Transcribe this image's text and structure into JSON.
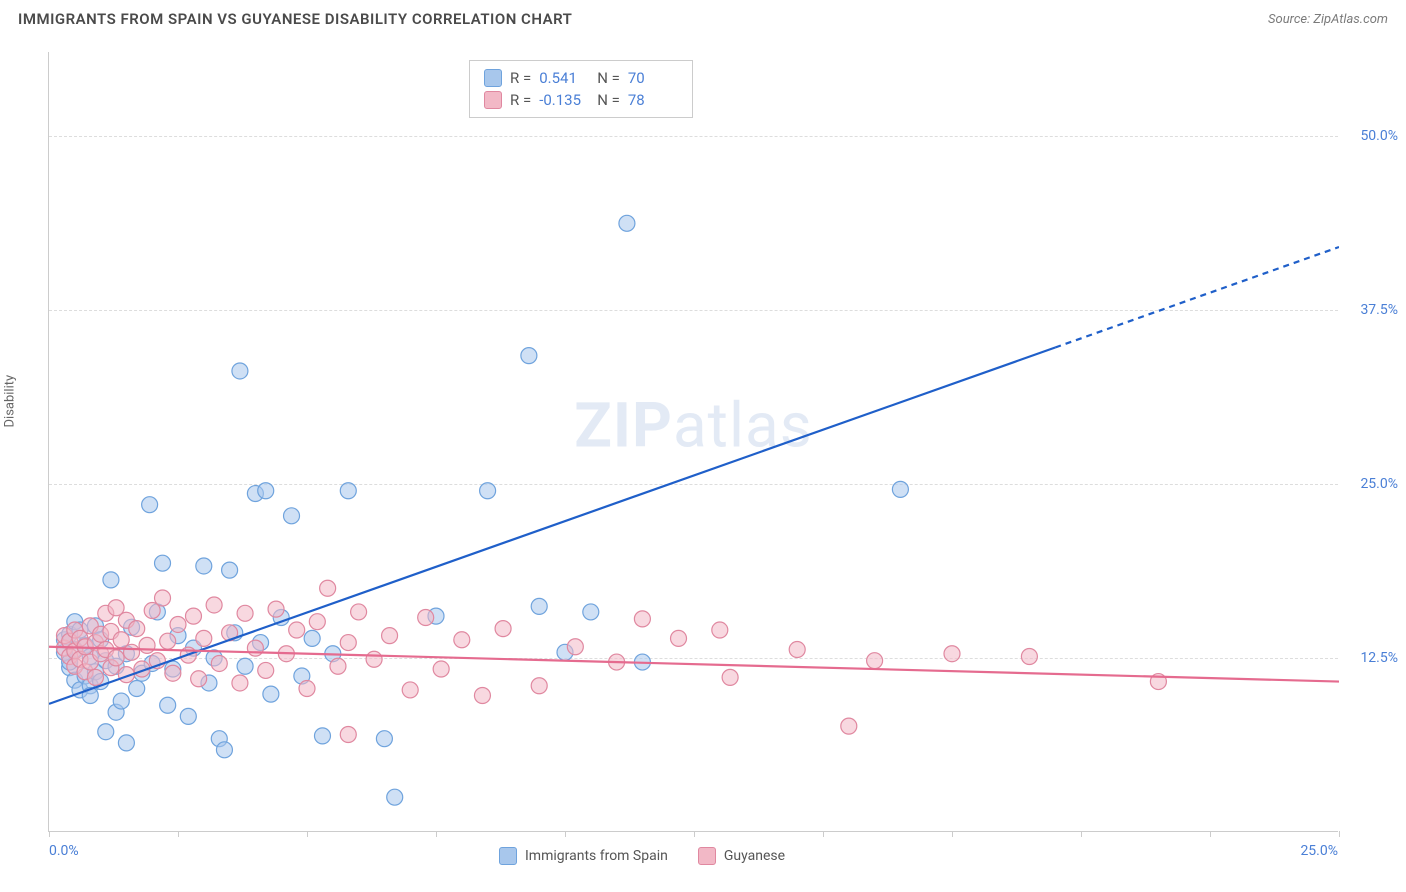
{
  "title": "IMMIGRANTS FROM SPAIN VS GUYANESE DISABILITY CORRELATION CHART",
  "source": "Source: ZipAtlas.com",
  "watermark_bold": "ZIP",
  "watermark_light": "atlas",
  "chart": {
    "type": "scatter",
    "xlim": [
      0,
      25
    ],
    "ylim": [
      0,
      56
    ],
    "x_tick_labels": {
      "first": "0.0%",
      "last": "25.0%"
    },
    "x_tick_positions": [
      0,
      2.5,
      5,
      7.5,
      10,
      12.5,
      15,
      17.5,
      20,
      22.5,
      25
    ],
    "y_gridlines": [
      12.5,
      25,
      37.5,
      50
    ],
    "y_tick_labels": [
      "12.5%",
      "25.0%",
      "37.5%",
      "50.0%"
    ],
    "y_axis_label": "Disability",
    "background_color": "#ffffff",
    "grid_color": "#dddddd",
    "axis_color": "#cccccc",
    "series": [
      {
        "name": "Immigrants from Spain",
        "color_fill": "#a8c7ec",
        "color_stroke": "#6fa3dd",
        "marker_radius": 8,
        "fill_opacity": 0.55,
        "R": "0.541",
        "N": "70",
        "trendline": {
          "color": "#1f5fc9",
          "width": 2.2,
          "solid_end_x": 19.5,
          "points": [
            [
              0,
              9.2
            ],
            [
              25,
              42
            ]
          ]
        },
        "points": [
          [
            0.3,
            13.8
          ],
          [
            0.3,
            12.9
          ],
          [
            0.4,
            11.8
          ],
          [
            0.4,
            14.2
          ],
          [
            0.4,
            12.2
          ],
          [
            0.5,
            13.1
          ],
          [
            0.5,
            10.9
          ],
          [
            0.5,
            15.1
          ],
          [
            0.6,
            10.2
          ],
          [
            0.6,
            14.5
          ],
          [
            0.7,
            13.4
          ],
          [
            0.7,
            11.2
          ],
          [
            0.8,
            12.6
          ],
          [
            0.8,
            10.5
          ],
          [
            0.8,
            9.8
          ],
          [
            0.9,
            14.8
          ],
          [
            0.9,
            11.5
          ],
          [
            1.0,
            13.8
          ],
          [
            1.0,
            10.8
          ],
          [
            1.1,
            7.2
          ],
          [
            1.1,
            12.3
          ],
          [
            1.2,
            18.1
          ],
          [
            1.3,
            8.6
          ],
          [
            1.3,
            11.9
          ],
          [
            1.4,
            9.4
          ],
          [
            1.5,
            6.4
          ],
          [
            1.5,
            12.8
          ],
          [
            1.6,
            14.7
          ],
          [
            1.7,
            10.3
          ],
          [
            1.8,
            11.4
          ],
          [
            1.95,
            23.5
          ],
          [
            2.0,
            12.1
          ],
          [
            2.1,
            15.8
          ],
          [
            2.2,
            19.3
          ],
          [
            2.3,
            9.1
          ],
          [
            2.4,
            11.7
          ],
          [
            2.5,
            14.1
          ],
          [
            2.7,
            8.3
          ],
          [
            2.8,
            13.2
          ],
          [
            3.0,
            19.1
          ],
          [
            3.1,
            10.7
          ],
          [
            3.2,
            12.5
          ],
          [
            3.3,
            6.7
          ],
          [
            3.4,
            5.9
          ],
          [
            3.5,
            18.8
          ],
          [
            3.6,
            14.3
          ],
          [
            3.7,
            33.1
          ],
          [
            3.8,
            11.9
          ],
          [
            4.0,
            24.3
          ],
          [
            4.1,
            13.6
          ],
          [
            4.2,
            24.5
          ],
          [
            4.3,
            9.9
          ],
          [
            4.5,
            15.4
          ],
          [
            4.7,
            22.7
          ],
          [
            4.9,
            11.2
          ],
          [
            5.1,
            13.9
          ],
          [
            5.3,
            6.9
          ],
          [
            5.5,
            12.8
          ],
          [
            5.8,
            24.5
          ],
          [
            6.5,
            6.7
          ],
          [
            6.7,
            2.5
          ],
          [
            7.5,
            15.5
          ],
          [
            8.5,
            24.5
          ],
          [
            9.3,
            34.2
          ],
          [
            9.5,
            16.2
          ],
          [
            10.0,
            12.9
          ],
          [
            10.5,
            15.8
          ],
          [
            11.2,
            43.7
          ],
          [
            11.5,
            12.2
          ],
          [
            16.5,
            24.6
          ]
        ]
      },
      {
        "name": "Guyanese",
        "color_fill": "#f2b8c6",
        "color_stroke": "#e088a0",
        "marker_radius": 8,
        "fill_opacity": 0.55,
        "R": "-0.135",
        "N": "78",
        "trendline": {
          "color": "#e56b8f",
          "width": 2.2,
          "points": [
            [
              0,
              13.3
            ],
            [
              25,
              10.8
            ]
          ]
        },
        "points": [
          [
            0.3,
            13.2
          ],
          [
            0.3,
            14.1
          ],
          [
            0.4,
            12.6
          ],
          [
            0.4,
            13.7
          ],
          [
            0.5,
            11.9
          ],
          [
            0.5,
            13.0
          ],
          [
            0.5,
            14.5
          ],
          [
            0.6,
            12.4
          ],
          [
            0.6,
            13.9
          ],
          [
            0.7,
            11.5
          ],
          [
            0.7,
            13.3
          ],
          [
            0.8,
            14.8
          ],
          [
            0.8,
            12.2
          ],
          [
            0.9,
            13.6
          ],
          [
            0.9,
            11.1
          ],
          [
            1.0,
            14.2
          ],
          [
            1.0,
            12.8
          ],
          [
            1.1,
            15.7
          ],
          [
            1.1,
            13.1
          ],
          [
            1.2,
            11.8
          ],
          [
            1.2,
            14.4
          ],
          [
            1.3,
            12.5
          ],
          [
            1.3,
            16.1
          ],
          [
            1.4,
            13.8
          ],
          [
            1.5,
            11.3
          ],
          [
            1.5,
            15.2
          ],
          [
            1.6,
            12.9
          ],
          [
            1.7,
            14.6
          ],
          [
            1.8,
            11.7
          ],
          [
            1.9,
            13.4
          ],
          [
            2.0,
            15.9
          ],
          [
            2.1,
            12.3
          ],
          [
            2.2,
            16.8
          ],
          [
            2.3,
            13.7
          ],
          [
            2.4,
            11.4
          ],
          [
            2.5,
            14.9
          ],
          [
            2.7,
            12.7
          ],
          [
            2.8,
            15.5
          ],
          [
            2.9,
            11.0
          ],
          [
            3.0,
            13.9
          ],
          [
            3.2,
            16.3
          ],
          [
            3.3,
            12.1
          ],
          [
            3.5,
            14.3
          ],
          [
            3.7,
            10.7
          ],
          [
            3.8,
            15.7
          ],
          [
            4.0,
            13.2
          ],
          [
            4.2,
            11.6
          ],
          [
            4.4,
            16.0
          ],
          [
            4.6,
            12.8
          ],
          [
            4.8,
            14.5
          ],
          [
            5.0,
            10.3
          ],
          [
            5.2,
            15.1
          ],
          [
            5.4,
            17.5
          ],
          [
            5.6,
            11.9
          ],
          [
            5.8,
            13.6
          ],
          [
            5.8,
            7.0
          ],
          [
            6.0,
            15.8
          ],
          [
            6.3,
            12.4
          ],
          [
            6.6,
            14.1
          ],
          [
            7.0,
            10.2
          ],
          [
            7.3,
            15.4
          ],
          [
            7.6,
            11.7
          ],
          [
            8.0,
            13.8
          ],
          [
            8.4,
            9.8
          ],
          [
            8.8,
            14.6
          ],
          [
            9.5,
            10.5
          ],
          [
            10.2,
            13.3
          ],
          [
            11.0,
            12.2
          ],
          [
            11.5,
            15.3
          ],
          [
            12.2,
            13.9
          ],
          [
            13.0,
            14.5
          ],
          [
            13.2,
            11.1
          ],
          [
            14.5,
            13.1
          ],
          [
            15.5,
            7.6
          ],
          [
            16.0,
            12.3
          ],
          [
            17.5,
            12.8
          ],
          [
            19.0,
            12.6
          ],
          [
            21.5,
            10.8
          ]
        ]
      }
    ]
  },
  "legend_top": {
    "label_R": "R =",
    "label_N": "N ="
  },
  "colors": {
    "title": "#4a4a4a",
    "source": "#7a7a7a",
    "value": "#4a7fd6"
  }
}
